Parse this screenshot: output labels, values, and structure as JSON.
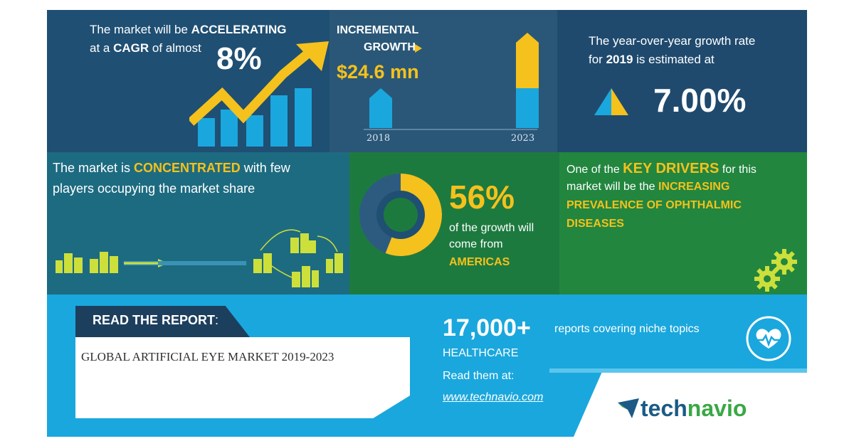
{
  "cagr": {
    "line1_prefix": "The market will be",
    "line1_highlight": "ACCELERATING",
    "line2_prefix": "at a",
    "line2_highlight": "CAGR",
    "line2_suffix": "of almost",
    "value": "8%"
  },
  "incremental": {
    "label_line1": "INCREMENTAL",
    "label_line2": "GROWTH",
    "amount": "$24.6 mn",
    "year_start": "2018",
    "year_end": "2023"
  },
  "yoy": {
    "line1": "The year-over-year growth rate",
    "line2_prefix": "for",
    "line2_year": "2019",
    "line2_suffix": "is estimated at",
    "value": "7.00%"
  },
  "concentration": {
    "line1_prefix": "The market is",
    "line1_highlight": "CONCENTRATED",
    "line1_suffix": "with few",
    "line2": "players occupying the market share"
  },
  "region": {
    "value": "56%",
    "share": 0.56,
    "line1": "of the growth will",
    "line2": "come from",
    "region_name": "AMERICAS"
  },
  "drivers": {
    "line1_prefix": "One of the",
    "line1_highlight": "KEY DRIVERS",
    "line1_suffix": "for this",
    "line2_prefix": "market will be the",
    "line2_highlight": "INCREASING",
    "line3": "PREVALENCE OF OPHTHALMIC",
    "line4": "DISEASES"
  },
  "report": {
    "tab_label": "READ THE REPORT",
    "tab_colon": ":",
    "title": "GLOBAL ARTIFICIAL EYE MARKET 2019-2023",
    "count": "17,000+",
    "count_text": "reports covering niche topics",
    "category": "HEALTHCARE",
    "read_at": "Read them at:",
    "url": "www.technavio.com"
  },
  "brand": {
    "logo_part1": "tech",
    "logo_part2": "navio"
  },
  "colors": {
    "yellow": "#f5c11c",
    "blue": "#1aa7dd",
    "navy": "#1f4f73",
    "green": "#1d7a3f"
  }
}
